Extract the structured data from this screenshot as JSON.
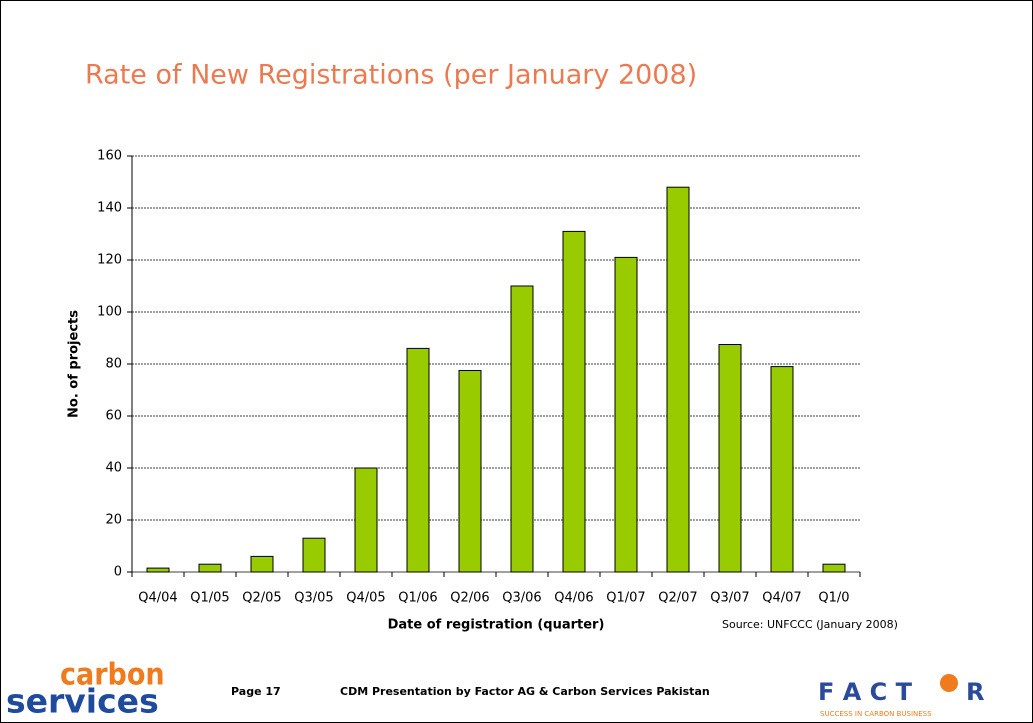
{
  "chart_data": {
    "type": "bar",
    "title": "Rate of New Registrations (per January 2008)",
    "categories": [
      "Q4/04",
      "Q1/05",
      "Q2/05",
      "Q3/05",
      "Q4/05",
      "Q1/06",
      "Q2/06",
      "Q3/06",
      "Q4/06",
      "Q1/07",
      "Q2/07",
      "Q3/07",
      "Q4/07",
      "Q1/0"
    ],
    "values": [
      1.5,
      3,
      6,
      13,
      40,
      86,
      77.5,
      110,
      131,
      121,
      148,
      87.5,
      79,
      3
    ],
    "color": "#99cc00",
    "ylim": [
      0,
      160
    ],
    "yticks": [
      0,
      20,
      40,
      60,
      80,
      100,
      120,
      140,
      160
    ],
    "grid": true,
    "x_label": "Date of registration (quarter)",
    "y_label": "No. of projects",
    "source": "Source: UNFCCC (January 2008)"
  },
  "footer": {
    "page": "Page 17",
    "text": "CDM Presentation by Factor AG & Carbon Services Pakistan",
    "logo_left": [
      "carbon",
      "services"
    ],
    "logo_right": [
      "F A C T",
      "R",
      "SUCCESS IN CARBON BUSINESS"
    ]
  }
}
